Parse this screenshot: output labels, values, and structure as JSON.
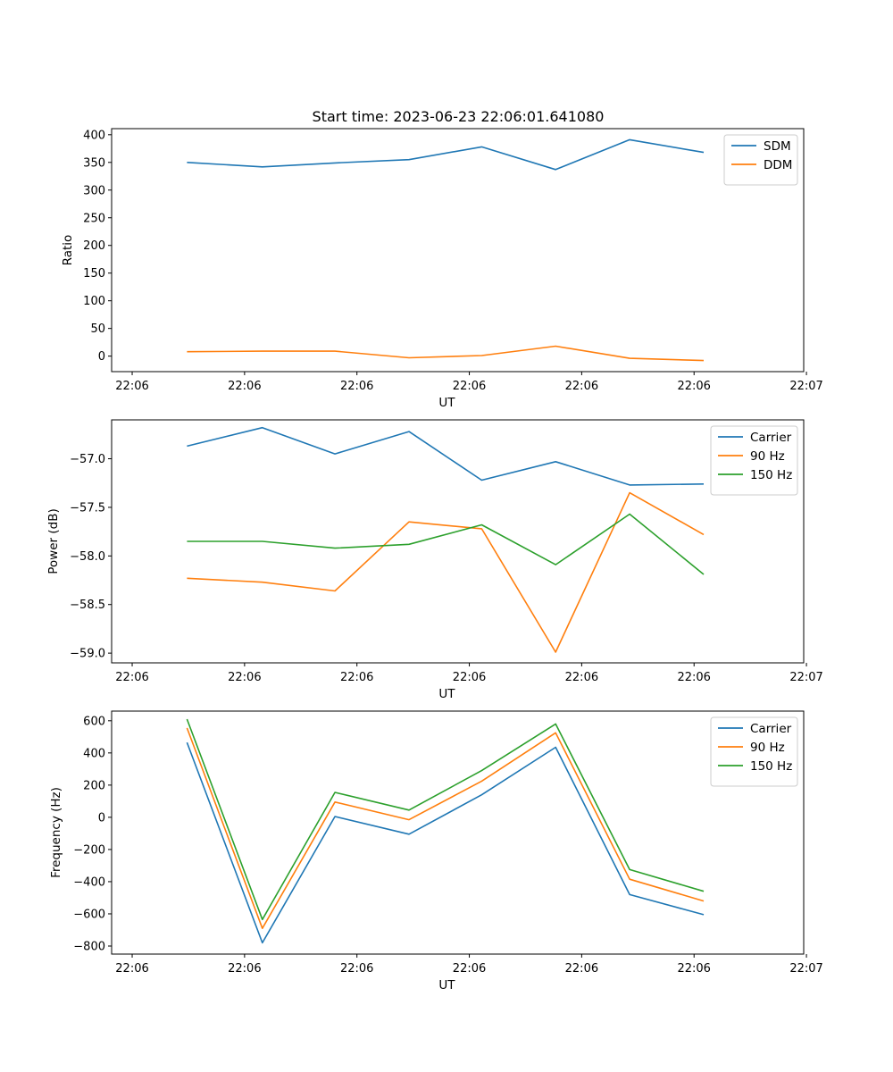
{
  "title": "Start time: 2023-06-23 22:06:01.641080",
  "chart_data": [
    {
      "type": "line",
      "ylabel": "Ratio",
      "xlabel": "UT",
      "xlim": [
        -0.15,
        4.9
      ],
      "ylim": [
        -28,
        411
      ],
      "x": [
        0.4,
        0.95,
        1.48,
        2.02,
        2.55,
        3.09,
        3.63,
        4.17
      ],
      "x_ticks": [
        0.0,
        0.82,
        1.64,
        2.46,
        3.28,
        4.1,
        4.92
      ],
      "x_tick_labels": [
        "22:06",
        "22:06",
        "22:06",
        "22:06",
        "22:06",
        "22:06",
        "22:06"
      ],
      "x_tick_last_label": "22:07",
      "y_ticks": [
        0,
        50,
        100,
        150,
        200,
        250,
        300,
        350,
        400
      ],
      "y_tick_labels": [
        "0",
        "50",
        "100",
        "150",
        "200",
        "250",
        "300",
        "350",
        "400"
      ],
      "legend": "upper-right",
      "series": [
        {
          "name": "SDM",
          "color": "#1f77b4",
          "values": [
            350,
            342,
            349,
            355,
            378,
            337,
            391,
            368
          ]
        },
        {
          "name": "DDM",
          "color": "#ff7f0e",
          "values": [
            8,
            9,
            9,
            -3,
            1,
            18,
            -4,
            -8
          ]
        }
      ]
    },
    {
      "type": "line",
      "ylabel": "Power (dB)",
      "xlabel": "UT",
      "xlim": [
        -0.15,
        4.9
      ],
      "ylim": [
        -59.1,
        -56.6
      ],
      "x": [
        0.4,
        0.95,
        1.48,
        2.02,
        2.55,
        3.09,
        3.63,
        4.17
      ],
      "x_ticks": [
        0.0,
        0.82,
        1.64,
        2.46,
        3.28,
        4.1,
        4.92
      ],
      "x_tick_labels": [
        "22:06",
        "22:06",
        "22:06",
        "22:06",
        "22:06",
        "22:06",
        "22:06"
      ],
      "x_tick_last_label": "22:07",
      "y_ticks": [
        -59.0,
        -58.5,
        -58.0,
        -57.5,
        -57.0
      ],
      "y_tick_labels": [
        "−59.0",
        "−58.5",
        "−58.0",
        "−57.5",
        "−57.0"
      ],
      "legend": "upper-right",
      "series": [
        {
          "name": "Carrier",
          "color": "#1f77b4",
          "values": [
            -56.87,
            -56.68,
            -56.95,
            -56.72,
            -57.22,
            -57.03,
            -57.27,
            -57.26
          ]
        },
        {
          "name": "90 Hz",
          "color": "#ff7f0e",
          "values": [
            -58.23,
            -58.27,
            -58.36,
            -57.65,
            -57.72,
            -58.99,
            -57.35,
            -57.78
          ]
        },
        {
          "name": "150 Hz",
          "color": "#2ca02c",
          "values": [
            -57.85,
            -57.85,
            -57.92,
            -57.88,
            -57.68,
            -58.09,
            -57.57,
            -58.19
          ]
        }
      ]
    },
    {
      "type": "line",
      "ylabel": "Frequency (Hz)",
      "xlabel": "UT",
      "xlim": [
        -0.15,
        4.9
      ],
      "ylim": [
        -850,
        660
      ],
      "x": [
        0.4,
        0.95,
        1.48,
        2.02,
        2.55,
        3.09,
        3.63,
        4.17
      ],
      "x_ticks": [
        0.0,
        0.82,
        1.64,
        2.46,
        3.28,
        4.1,
        4.92
      ],
      "x_tick_labels": [
        "22:06",
        "22:06",
        "22:06",
        "22:06",
        "22:06",
        "22:06",
        "22:06"
      ],
      "x_tick_last_label": "22:07",
      "y_ticks": [
        -800,
        -600,
        -400,
        -200,
        0,
        200,
        400,
        600
      ],
      "y_tick_labels": [
        "−800",
        "−600",
        "−400",
        "−200",
        "0",
        "200",
        "400",
        "600"
      ],
      "legend": "upper-right",
      "series": [
        {
          "name": "Carrier",
          "color": "#1f77b4",
          "values": [
            465,
            -780,
            5,
            -105,
            140,
            435,
            -480,
            -605
          ]
        },
        {
          "name": "90 Hz",
          "color": "#ff7f0e",
          "values": [
            555,
            -690,
            95,
            -15,
            225,
            525,
            -385,
            -520
          ]
        },
        {
          "name": "150 Hz",
          "color": "#2ca02c",
          "values": [
            610,
            -635,
            155,
            45,
            290,
            580,
            -325,
            -460
          ]
        }
      ]
    }
  ]
}
